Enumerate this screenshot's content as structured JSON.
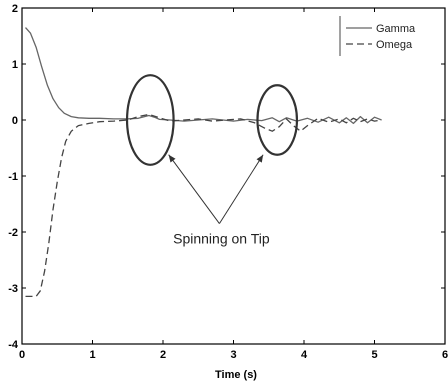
{
  "chart_data": {
    "type": "line",
    "title": "",
    "xlabel": "Time (s)",
    "ylabel": "",
    "xlim": [
      0,
      6
    ],
    "ylim": [
      -4,
      2
    ],
    "xticks": [
      "0",
      "1",
      "2",
      "3",
      "4",
      "5",
      "6"
    ],
    "yticks": [
      "2",
      "1",
      "0",
      "-1",
      "-2",
      "-3",
      "-4"
    ],
    "grid": false,
    "legend": "top-right",
    "series": [
      {
        "name": "Gamma",
        "style": "solid",
        "color": "#666666",
        "points": [
          [
            0.05,
            1.65
          ],
          [
            0.12,
            1.55
          ],
          [
            0.2,
            1.3
          ],
          [
            0.28,
            0.95
          ],
          [
            0.36,
            0.62
          ],
          [
            0.44,
            0.38
          ],
          [
            0.52,
            0.22
          ],
          [
            0.6,
            0.12
          ],
          [
            0.7,
            0.06
          ],
          [
            0.8,
            0.04
          ],
          [
            0.95,
            0.03
          ],
          [
            1.1,
            0.03
          ],
          [
            1.3,
            0.02
          ],
          [
            1.5,
            0.02
          ],
          [
            1.65,
            0.03
          ],
          [
            1.8,
            0.08
          ],
          [
            1.88,
            0.05
          ],
          [
            1.95,
            0.01
          ],
          [
            2.1,
            0.0
          ],
          [
            2.3,
            -0.02
          ],
          [
            2.5,
            0.0
          ],
          [
            2.7,
            0.02
          ],
          [
            2.85,
            0.0
          ],
          [
            3.0,
            -0.02
          ],
          [
            3.2,
            0.01
          ],
          [
            3.4,
            -0.01
          ],
          [
            3.55,
            0.04
          ],
          [
            3.65,
            -0.03
          ],
          [
            3.75,
            0.04
          ],
          [
            3.9,
            -0.02
          ],
          [
            4.05,
            0.03
          ],
          [
            4.2,
            -0.04
          ],
          [
            4.35,
            0.05
          ],
          [
            4.5,
            -0.05
          ],
          [
            4.6,
            0.04
          ],
          [
            4.7,
            -0.06
          ],
          [
            4.8,
            0.06
          ],
          [
            4.9,
            -0.05
          ],
          [
            5.0,
            0.05
          ],
          [
            5.1,
            0.0
          ]
        ]
      },
      {
        "name": "Omega",
        "style": "dashed",
        "color": "#444444",
        "points": [
          [
            0.05,
            -3.15
          ],
          [
            0.2,
            -3.15
          ],
          [
            0.26,
            -3.05
          ],
          [
            0.32,
            -2.7
          ],
          [
            0.38,
            -2.2
          ],
          [
            0.44,
            -1.6
          ],
          [
            0.5,
            -1.1
          ],
          [
            0.56,
            -0.68
          ],
          [
            0.62,
            -0.38
          ],
          [
            0.7,
            -0.2
          ],
          [
            0.8,
            -0.1
          ],
          [
            0.95,
            -0.06
          ],
          [
            1.1,
            -0.03
          ],
          [
            1.3,
            -0.02
          ],
          [
            1.5,
            0.0
          ],
          [
            1.65,
            0.06
          ],
          [
            1.8,
            0.1
          ],
          [
            1.95,
            0.04
          ],
          [
            2.1,
            -0.02
          ],
          [
            2.3,
            0.0
          ],
          [
            2.5,
            0.02
          ],
          [
            2.7,
            -0.02
          ],
          [
            2.9,
            0.0
          ],
          [
            3.1,
            0.02
          ],
          [
            3.3,
            -0.05
          ],
          [
            3.45,
            -0.15
          ],
          [
            3.55,
            -0.2
          ],
          [
            3.65,
            -0.12
          ],
          [
            3.75,
            0.02
          ],
          [
            3.85,
            -0.1
          ],
          [
            3.95,
            -0.2
          ],
          [
            4.05,
            -0.1
          ],
          [
            4.2,
            0.03
          ],
          [
            4.35,
            -0.04
          ],
          [
            4.5,
            0.02
          ],
          [
            4.6,
            -0.05
          ],
          [
            4.7,
            0.03
          ],
          [
            4.8,
            -0.03
          ],
          [
            4.9,
            0.02
          ],
          [
            5.0,
            -0.02
          ],
          [
            5.1,
            0.0
          ]
        ]
      }
    ],
    "annotation": {
      "text": "Spinning on Tip",
      "circles": [
        {
          "center": [
            1.82,
            0.0
          ],
          "rx": 0.33,
          "ry": 0.8
        },
        {
          "center": [
            3.62,
            0.0
          ],
          "rx": 0.28,
          "ry": 0.62
        }
      ],
      "arrow_origin": [
        2.8,
        -1.85
      ],
      "arrow_targets": [
        [
          2.08,
          -0.62
        ],
        [
          3.42,
          -0.62
        ]
      ]
    }
  }
}
